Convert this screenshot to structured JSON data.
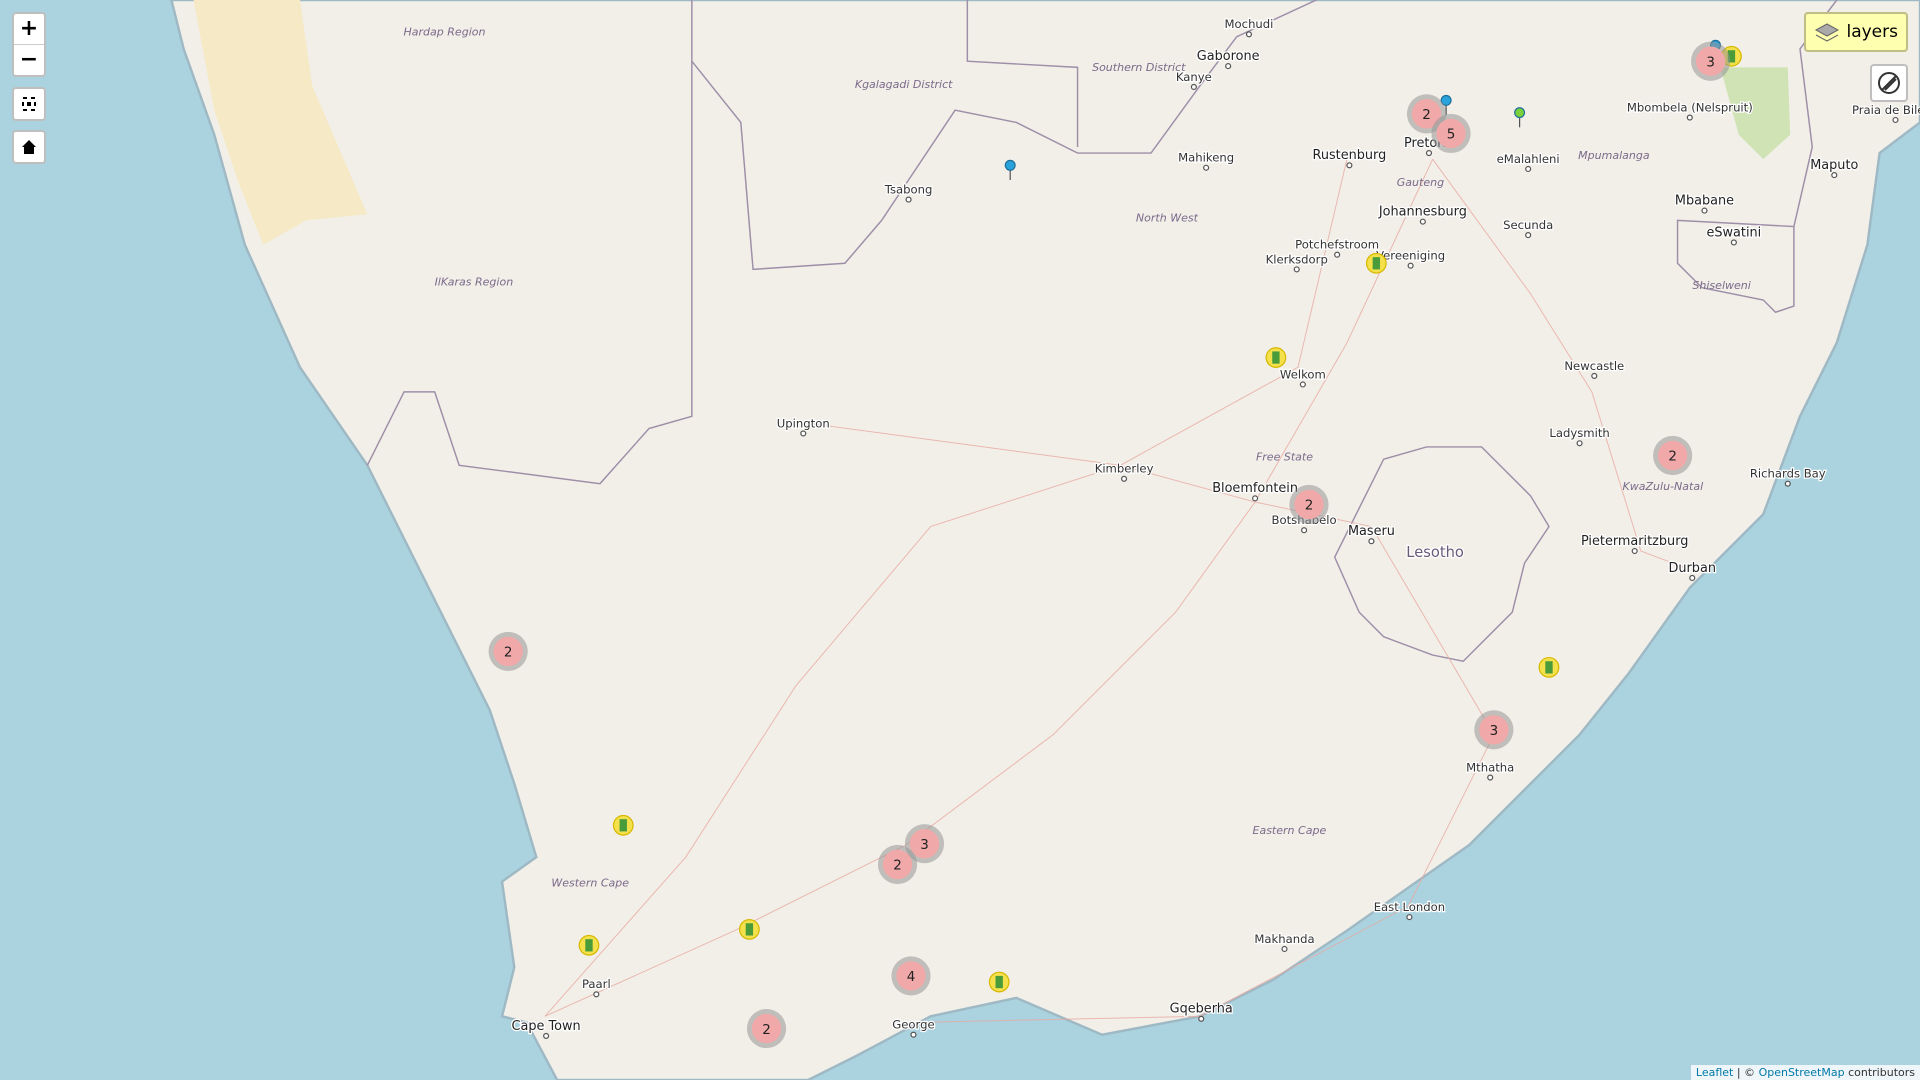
{
  "controls": {
    "zoom_in": "+",
    "zoom_out": "−",
    "layers": "layers"
  },
  "places": [
    "Hardap Region",
    "Mochudi",
    "Gaborone",
    "Kanye",
    "Southern District",
    "Kgalagadi District",
    "Tsabong",
    "Mahikeng",
    "Rustenburg",
    "Pretoria",
    "eMalahleni",
    "Mpumalanga",
    "Mbombela (Nelspruit)",
    "Maputo",
    "Praia de Bilene",
    "Gauteng",
    "Johannesburg",
    "Secunda",
    "Mbabane",
    "eSwatini",
    "Shiselweni",
    "North West",
    "Potchefstroom",
    "Klerksdorp",
    "Vereeniging",
    "IlKaras Region",
    "Welkom",
    "Newcastle",
    "Upington",
    "Ladysmith",
    "Kimberley",
    "Free State",
    "Bloemfontein",
    "Botshabelo",
    "Maseru",
    "Lesotho",
    "KwaZulu-Natal",
    "Richards Bay",
    "Pietermaritzburg",
    "Durban",
    "Mthatha",
    "Eastern Cape",
    "Western Cape",
    "Paarl",
    "Cape Town",
    "George",
    "Gqeberha",
    "East London",
    "Makhanda"
  ],
  "clusters": [
    2,
    5,
    3,
    2,
    2,
    2,
    3,
    3,
    2,
    4,
    2
  ],
  "attribution": {
    "leaflet": "Leaflet",
    "separator": "| ©",
    "osm": "OpenStreetMap",
    "suffix": "contributors"
  }
}
